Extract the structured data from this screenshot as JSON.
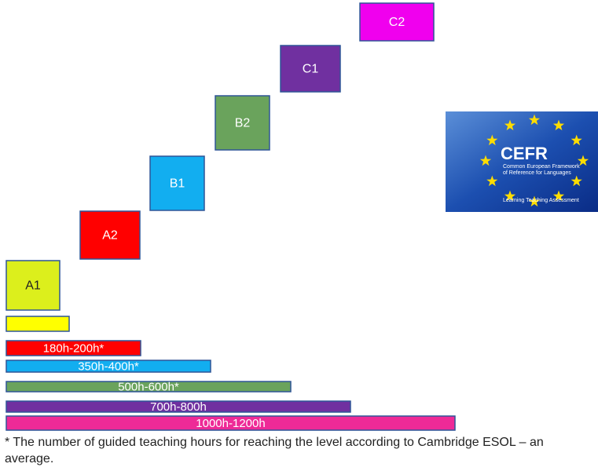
{
  "levels": [
    {
      "label": "A1"
    },
    {
      "label": "A2"
    },
    {
      "label": "B1"
    },
    {
      "label": "B2"
    },
    {
      "label": "C1"
    },
    {
      "label": "C2"
    }
  ],
  "bars": [
    {},
    {
      "label": "180h-200h*"
    },
    {
      "label": "350h-400h*"
    },
    {
      "label": "500h-600h*"
    },
    {
      "label": "700h-800h"
    },
    {
      "label": "1000h-1200h"
    }
  ],
  "footnote": "* The number of guided teaching hours for reaching the level according to Cambridge ESOL – an average.",
  "logo": {
    "title": "CEFR",
    "subtitle_1": "Common European Framework",
    "subtitle_2": "of Reference for Languages",
    "tagline": "Learning Teaching Assessment"
  }
}
